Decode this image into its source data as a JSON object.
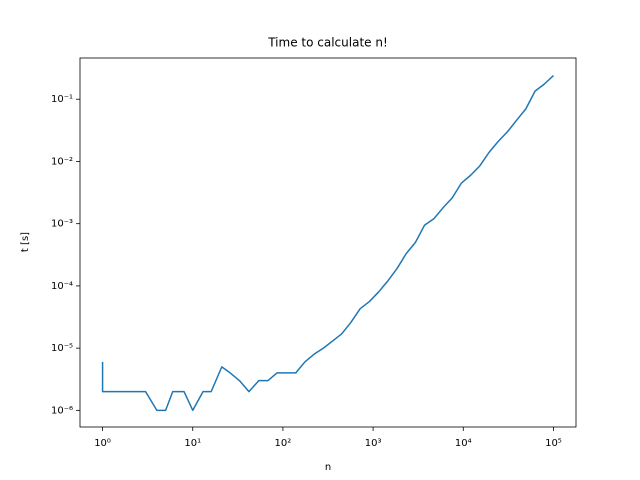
{
  "chart_data": {
    "type": "line",
    "title": "Time to calculate n!",
    "x_label": "n",
    "y_label": "t [s]",
    "log_x": true,
    "log_y": true,
    "grid": false,
    "x": [
      1,
      1,
      1,
      2,
      2,
      3,
      4,
      5,
      6,
      8,
      10,
      13,
      16,
      21,
      26,
      33,
      42,
      54,
      68,
      86,
      109,
      139,
      175,
      222,
      281,
      355,
      449,
      568,
      719,
      910,
      1151,
      1456,
      1842,
      2329,
      2947,
      3727,
      4714,
      5963,
      7543,
      9540,
      12067,
      15264,
      19306,
      24420,
      30888,
      39069,
      49417,
      62505,
      79060,
      100000
    ],
    "series": [
      {
        "name": "t",
        "color": "#1f77b4",
        "values": [
          6e-06,
          2e-06,
          2e-06,
          2e-06,
          2e-06,
          2e-06,
          1e-06,
          1e-06,
          2e-06,
          2e-06,
          1e-06,
          2e-06,
          2e-06,
          5e-06,
          4e-06,
          3e-06,
          2e-06,
          3e-06,
          3e-06,
          4e-06,
          4e-06,
          4e-06,
          6e-06,
          8e-06,
          1e-05,
          1.3e-05,
          1.7e-05,
          2.6e-05,
          4.3e-05,
          5.6e-05,
          8e-05,
          0.00012,
          0.00019,
          0.00033,
          0.0005,
          0.00095,
          0.0012,
          0.0018,
          0.0026,
          0.0045,
          0.006,
          0.0085,
          0.014,
          0.021,
          0.03,
          0.046,
          0.07,
          0.135,
          0.175,
          0.24
        ]
      }
    ],
    "xlim": [
      0.562,
      177828
    ],
    "ylim": [
      5.4e-07,
      0.46
    ],
    "xticks": [
      {
        "value": 1,
        "label": "10⁰"
      },
      {
        "value": 10,
        "label": "10¹"
      },
      {
        "value": 100,
        "label": "10²"
      },
      {
        "value": 1000,
        "label": "10³"
      },
      {
        "value": 10000,
        "label": "10⁴"
      },
      {
        "value": 100000,
        "label": "10⁵"
      }
    ],
    "yticks": [
      {
        "value": 1e-06,
        "label": "10⁻⁶"
      },
      {
        "value": 1e-05,
        "label": "10⁻⁵"
      },
      {
        "value": 0.0001,
        "label": "10⁻⁴"
      },
      {
        "value": 0.001,
        "label": "10⁻³"
      },
      {
        "value": 0.01,
        "label": "10⁻²"
      },
      {
        "value": 0.1,
        "label": "10⁻¹"
      }
    ]
  }
}
